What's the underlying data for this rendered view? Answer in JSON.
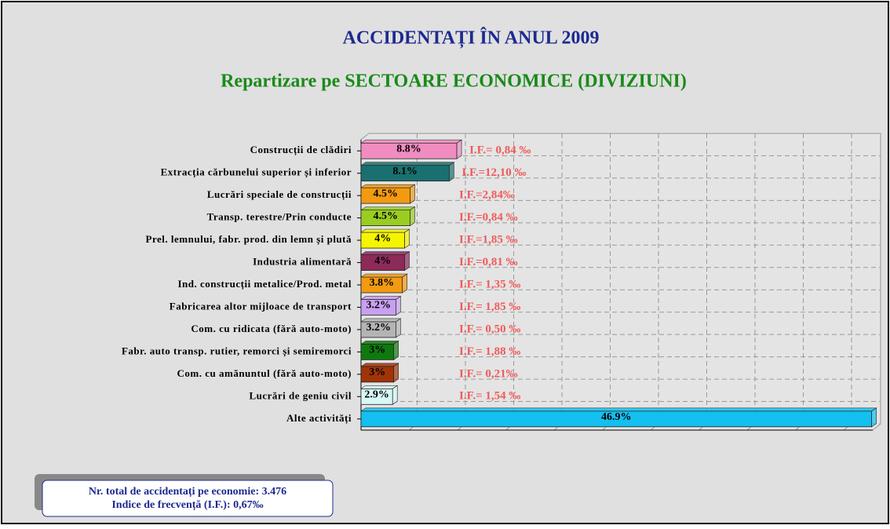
{
  "chart_data": {
    "type": "bar",
    "orientation": "horizontal",
    "title": "ACCIDENTAȚI ÎN ANUL 2009",
    "subtitle": "Repartizare pe SECTOARE ECONOMICE (DIVIZIUNI)",
    "categories": [
      "Construcții de clădiri",
      "Extracția cărbunelui superior și inferior",
      "Lucrări speciale de construcții",
      "Transp. terestre/Prin conducte",
      "Prel. lemnului, fabr. prod. din lemn și plută",
      "Industria alimentară",
      "Ind. construcții metalice/Prod. metal",
      "Fabricarea altor mijloace de transport",
      "Com. cu ridicata (fără auto-moto)",
      "Fabr. auto transp. rutier, remorci și semiremorci",
      "Com. cu amănuntul (fără auto-moto)",
      "Lucrări de geniu civil",
      "Alte activități"
    ],
    "values": [
      8.8,
      8.1,
      4.5,
      4.5,
      4,
      4,
      3.8,
      3.2,
      3.2,
      3,
      3,
      2.9,
      46.9
    ],
    "value_labels": [
      "8.8%",
      "8.1%",
      "4.5%",
      "4.5%",
      "4%",
      "4%",
      "3.8%",
      "3.2%",
      "3.2%",
      "3%",
      "3%",
      "2.9%",
      "46.9%"
    ],
    "annotations": [
      "I.F.= 0,84 ‰",
      "I.F.=12,10 ‰",
      "I.F.=2,84‰",
      "I.F.=0,84 ‰",
      "I.F.=1,85 ‰",
      "I.F.=0,81 ‰",
      "I.F.= 1,35 ‰",
      "I.F.= 1,85 ‰",
      "I.F.= 0,50 ‰",
      "I.F.= 1,88 ‰",
      "I.F.= 0,21‰",
      "I.F.= 1,54 ‰",
      null
    ],
    "colors": [
      "#f08cc0",
      "#1a7070",
      "#f29a12",
      "#9acd22",
      "#f5f500",
      "#8c2a5a",
      "#f29a12",
      "#c8a0f0",
      "#b4b4b4",
      "#0e7a0e",
      "#a03408",
      "#d8f8f8",
      "#14c0f0"
    ],
    "xlim": [
      0,
      47
    ],
    "grid": true,
    "footnote": [
      "Nr. total de accidentați pe economie: 3.476",
      "Indice de frecvență (I.F.): 0,67‰"
    ]
  }
}
